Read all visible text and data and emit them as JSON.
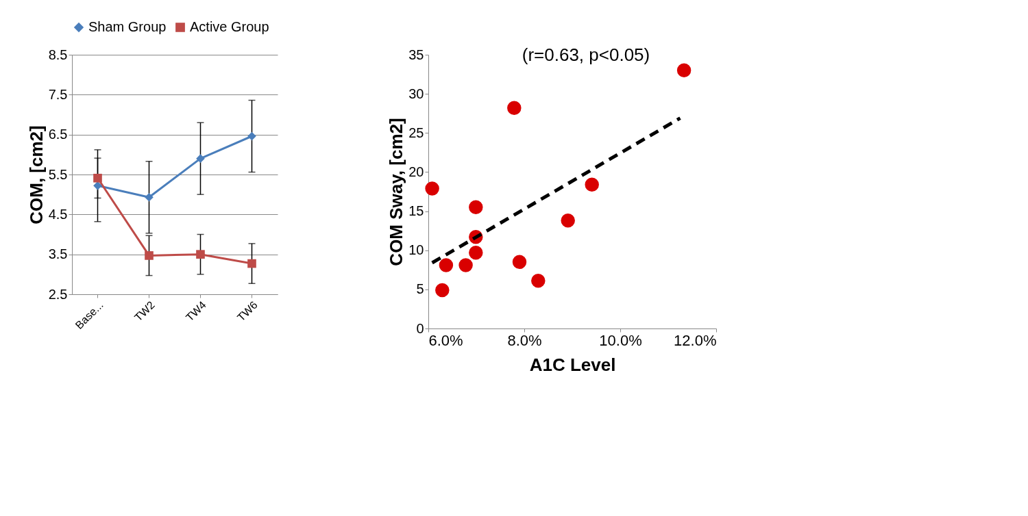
{
  "chart_data": [
    {
      "type": "line",
      "categories": [
        "Base...",
        "TW2",
        "TW4",
        "TW6"
      ],
      "ylabel": "COM, [cm2]",
      "ylim": [
        2.5,
        8.5
      ],
      "yticks": [
        2.5,
        3.5,
        4.5,
        5.5,
        6.5,
        7.5,
        8.5
      ],
      "grid": "y",
      "legend": "top",
      "series": [
        {
          "name": "Sham Group",
          "color": "#4a7ebb",
          "marker": "diamond",
          "values": [
            5.22,
            4.93,
            5.9,
            6.46
          ],
          "errors": [
            0.9,
            0.9,
            0.9,
            0.9
          ]
        },
        {
          "name": "Active Group",
          "color": "#be4b48",
          "marker": "square",
          "values": [
            5.41,
            3.47,
            3.5,
            3.27
          ],
          "errors": [
            0.5,
            0.5,
            0.5,
            0.5
          ]
        }
      ]
    },
    {
      "type": "scatter",
      "xlabel": "A1C Level",
      "ylabel": "COM Sway, [cm2]",
      "xlim": [
        6,
        12
      ],
      "ylim": [
        0,
        35
      ],
      "xticks": [
        {
          "value": 6,
          "label": "6.0%"
        },
        {
          "value": 8,
          "label": "8.0%"
        },
        {
          "value": 10,
          "label": "10.0%"
        },
        {
          "value": 12,
          "label": "12.0%"
        }
      ],
      "yticks": [
        0,
        5,
        10,
        15,
        20,
        25,
        30,
        35
      ],
      "grid": false,
      "annotations": [
        "(r=0.63, p<0.05)"
      ],
      "series": [
        {
          "type": "scatter",
          "color": "#d90000",
          "marker": "circle",
          "x": [
            6.08,
            6.37,
            6.29,
            6.78,
            6.99,
            6.99,
            6.99,
            7.79,
            7.9,
            8.29,
            8.91,
            9.41,
            11.33
          ],
          "values": [
            17.9,
            8.1,
            4.9,
            8.1,
            15.5,
            11.7,
            9.7,
            28.2,
            8.5,
            6.1,
            13.8,
            18.4,
            33.0
          ]
        },
        {
          "type": "line",
          "color": "#000000",
          "line_style": "dashed",
          "x": [
            6.08,
            11.25
          ],
          "values": [
            8.4,
            26.9
          ]
        }
      ]
    }
  ]
}
